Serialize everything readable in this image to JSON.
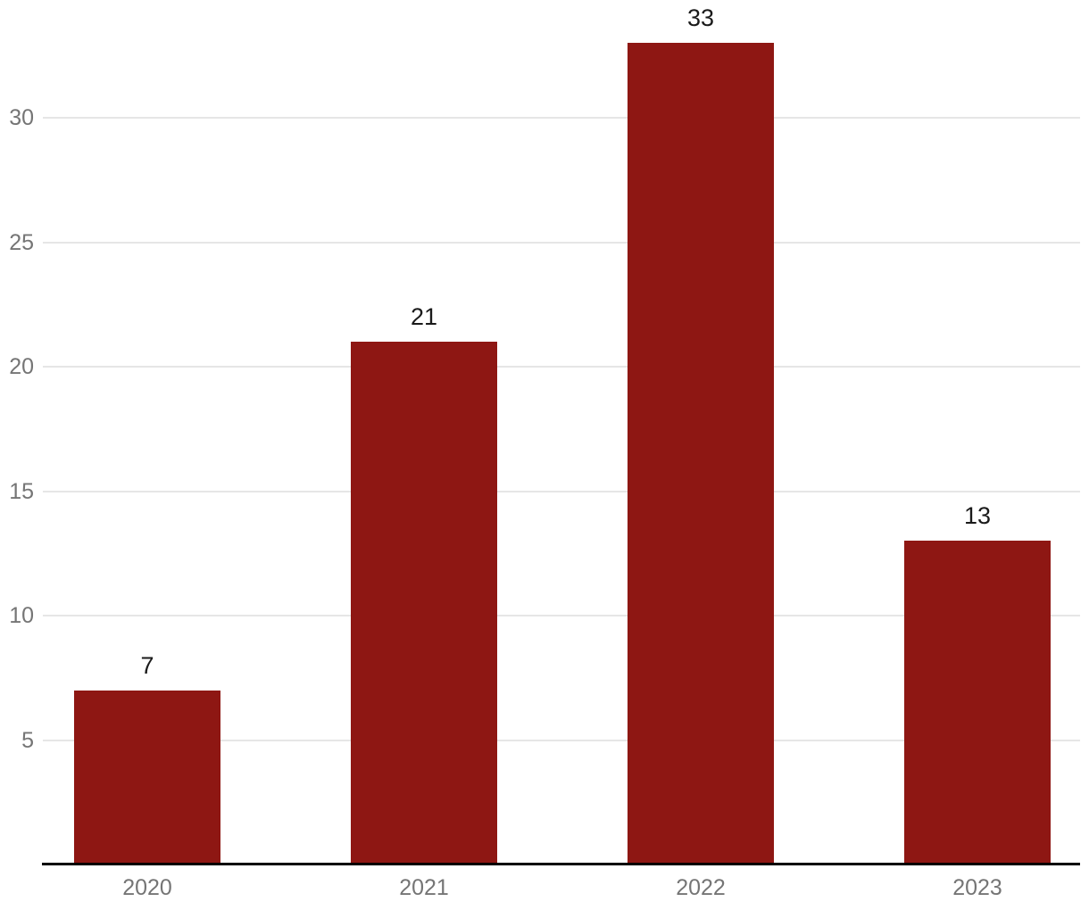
{
  "chart_data": {
    "type": "bar",
    "title": "",
    "xlabel": "",
    "ylabel": "",
    "categories": [
      "2020",
      "2021",
      "2022",
      "2023"
    ],
    "values": [
      7,
      21,
      33,
      13
    ],
    "value_labels": [
      "7",
      "21",
      "33",
      "13"
    ],
    "yticks": [
      5,
      10,
      15,
      20,
      25,
      30
    ],
    "ylim": [
      0,
      33.5
    ],
    "grid": true,
    "legend": "none",
    "colors": {
      "bar": "#8E1713",
      "grid": "#e6e6e6",
      "axis_text": "#757575",
      "value_text": "#1a1a1a",
      "baseline": "#000000",
      "background": "#ffffff"
    }
  }
}
